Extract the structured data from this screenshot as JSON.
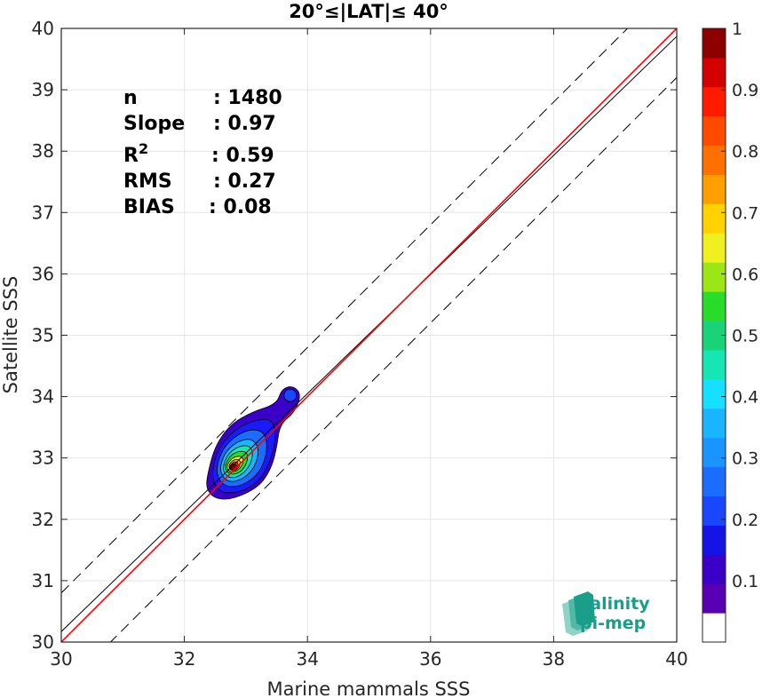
{
  "chart_data": {
    "type": "heatmap",
    "title": "20°≤|LAT|≤ 40°",
    "xlabel": "Marine mammals SSS",
    "ylabel": "Satellite SSS",
    "xlim": [
      30,
      40
    ],
    "ylim": [
      30,
      40
    ],
    "x_ticks": [
      "30",
      "32",
      "34",
      "36",
      "38",
      "40"
    ],
    "y_ticks": [
      "30",
      "31",
      "32",
      "33",
      "34",
      "35",
      "36",
      "37",
      "38",
      "39",
      "40"
    ],
    "grid": true,
    "stats": [
      {
        "label": "n",
        "value": ": 1480"
      },
      {
        "label": "Slope",
        "value": ": 0.97"
      },
      {
        "label": "R",
        "sup": "2",
        "value": ": 0.59"
      },
      {
        "label": "RMS",
        "value": ": 0.27"
      },
      {
        "label": "BIAS",
        "value": ": 0.08"
      }
    ],
    "reference_lines": {
      "identity": {
        "slope": 1,
        "intercept": 0,
        "color": "#ff0000"
      },
      "regression": {
        "slope": 0.97,
        "intercept": 1.07,
        "color": "#000000"
      },
      "upper_bound": {
        "slope": 1,
        "intercept": 0.8,
        "style": "dashed"
      },
      "lower_bound": {
        "slope": 1,
        "intercept": -0.8,
        "style": "dashed"
      }
    },
    "density_peak": {
      "x": 32.8,
      "y": 32.85
    },
    "density_contours": [
      {
        "level": 0.05,
        "color": "#3a00c8",
        "points": [
          [
            32.38,
            32.75
          ],
          [
            32.5,
            33.2
          ],
          [
            32.75,
            33.55
          ],
          [
            33.1,
            33.75
          ],
          [
            33.5,
            33.88
          ],
          [
            33.58,
            34.12
          ],
          [
            33.75,
            34.18
          ],
          [
            33.9,
            34.05
          ],
          [
            33.8,
            33.75
          ],
          [
            33.55,
            33.55
          ],
          [
            33.5,
            33.15
          ],
          [
            33.4,
            32.8
          ],
          [
            33.2,
            32.52
          ],
          [
            32.8,
            32.33
          ],
          [
            32.5,
            32.33
          ],
          [
            32.35,
            32.5
          ]
        ]
      },
      {
        "level": 0.15,
        "color": "#1a1aff",
        "points": [
          [
            32.45,
            32.8
          ],
          [
            32.55,
            33.15
          ],
          [
            32.8,
            33.45
          ],
          [
            33.1,
            33.6
          ],
          [
            33.4,
            33.65
          ],
          [
            33.5,
            33.4
          ],
          [
            33.42,
            33.0
          ],
          [
            33.25,
            32.65
          ],
          [
            32.95,
            32.45
          ],
          [
            32.65,
            32.42
          ],
          [
            32.48,
            32.55
          ]
        ]
      },
      {
        "level": 0.25,
        "color": "#1a6dff",
        "points": [
          [
            32.52,
            32.85
          ],
          [
            32.62,
            33.15
          ],
          [
            32.85,
            33.38
          ],
          [
            33.12,
            33.48
          ],
          [
            33.32,
            33.4
          ],
          [
            33.35,
            33.1
          ],
          [
            33.22,
            32.75
          ],
          [
            32.95,
            32.55
          ],
          [
            32.7,
            32.52
          ],
          [
            32.55,
            32.65
          ]
        ]
      },
      {
        "level": 0.35,
        "color": "#1ab4ff",
        "points": [
          [
            32.58,
            32.88
          ],
          [
            32.68,
            33.12
          ],
          [
            32.88,
            33.28
          ],
          [
            33.1,
            33.32
          ],
          [
            33.22,
            33.15
          ],
          [
            33.15,
            32.85
          ],
          [
            32.95,
            32.65
          ],
          [
            32.72,
            32.6
          ],
          [
            32.6,
            32.72
          ]
        ]
      },
      {
        "level": 0.45,
        "color": "#16e6b4",
        "points": [
          [
            32.63,
            32.88
          ],
          [
            32.72,
            33.08
          ],
          [
            32.9,
            33.2
          ],
          [
            33.07,
            33.2
          ],
          [
            33.12,
            33.05
          ],
          [
            33.05,
            32.85
          ],
          [
            32.9,
            32.7
          ],
          [
            32.74,
            32.67
          ],
          [
            32.64,
            32.76
          ]
        ]
      },
      {
        "level": 0.55,
        "color": "#2adc2a",
        "points": [
          [
            32.66,
            32.88
          ],
          [
            32.75,
            33.05
          ],
          [
            32.92,
            33.12
          ],
          [
            33.03,
            33.08
          ],
          [
            33.02,
            32.92
          ],
          [
            32.92,
            32.77
          ],
          [
            32.77,
            32.72
          ],
          [
            32.67,
            32.79
          ]
        ]
      },
      {
        "level": 0.65,
        "color": "#f0f020",
        "points": [
          [
            32.69,
            32.88
          ],
          [
            32.77,
            33.0
          ],
          [
            32.92,
            33.04
          ],
          [
            32.97,
            32.95
          ],
          [
            32.9,
            32.82
          ],
          [
            32.78,
            32.76
          ],
          [
            32.7,
            32.81
          ]
        ]
      },
      {
        "level": 0.75,
        "color": "#ffb000",
        "points": [
          [
            32.71,
            32.87
          ],
          [
            32.79,
            32.97
          ],
          [
            32.89,
            32.98
          ],
          [
            32.92,
            32.9
          ],
          [
            32.85,
            32.81
          ],
          [
            32.76,
            32.79
          ]
        ]
      },
      {
        "level": 0.85,
        "color": "#ff4a00",
        "points": [
          [
            32.73,
            32.86
          ],
          [
            32.8,
            32.94
          ],
          [
            32.87,
            32.93
          ],
          [
            32.87,
            32.85
          ],
          [
            32.8,
            32.8
          ],
          [
            32.74,
            32.81
          ]
        ]
      },
      {
        "level": 0.95,
        "color": "#b40000",
        "points": [
          [
            32.75,
            32.86
          ],
          [
            32.8,
            32.91
          ],
          [
            32.85,
            32.88
          ],
          [
            32.83,
            32.82
          ],
          [
            32.77,
            32.82
          ]
        ]
      }
    ],
    "colorbar": {
      "range": [
        0,
        1
      ],
      "ticks": [
        "0.1",
        "0.2",
        "0.3",
        "0.4",
        "0.5",
        "0.6",
        "0.7",
        "0.8",
        "0.9",
        "1"
      ],
      "colors": [
        "#ffffff",
        "#5a00b4",
        "#3a00c8",
        "#1414e6",
        "#1a46ff",
        "#1a6dff",
        "#1a94ff",
        "#1ab4ff",
        "#16e0ff",
        "#16e6b4",
        "#1ad278",
        "#2adc2a",
        "#9be614",
        "#f0f020",
        "#ffd200",
        "#ffa000",
        "#ff7000",
        "#ff4a00",
        "#ff1a00",
        "#d20000",
        "#8c0000"
      ]
    }
  },
  "logo": {
    "line1": "salinity",
    "line2": "pi-mep",
    "color": "#1a9e8c"
  }
}
